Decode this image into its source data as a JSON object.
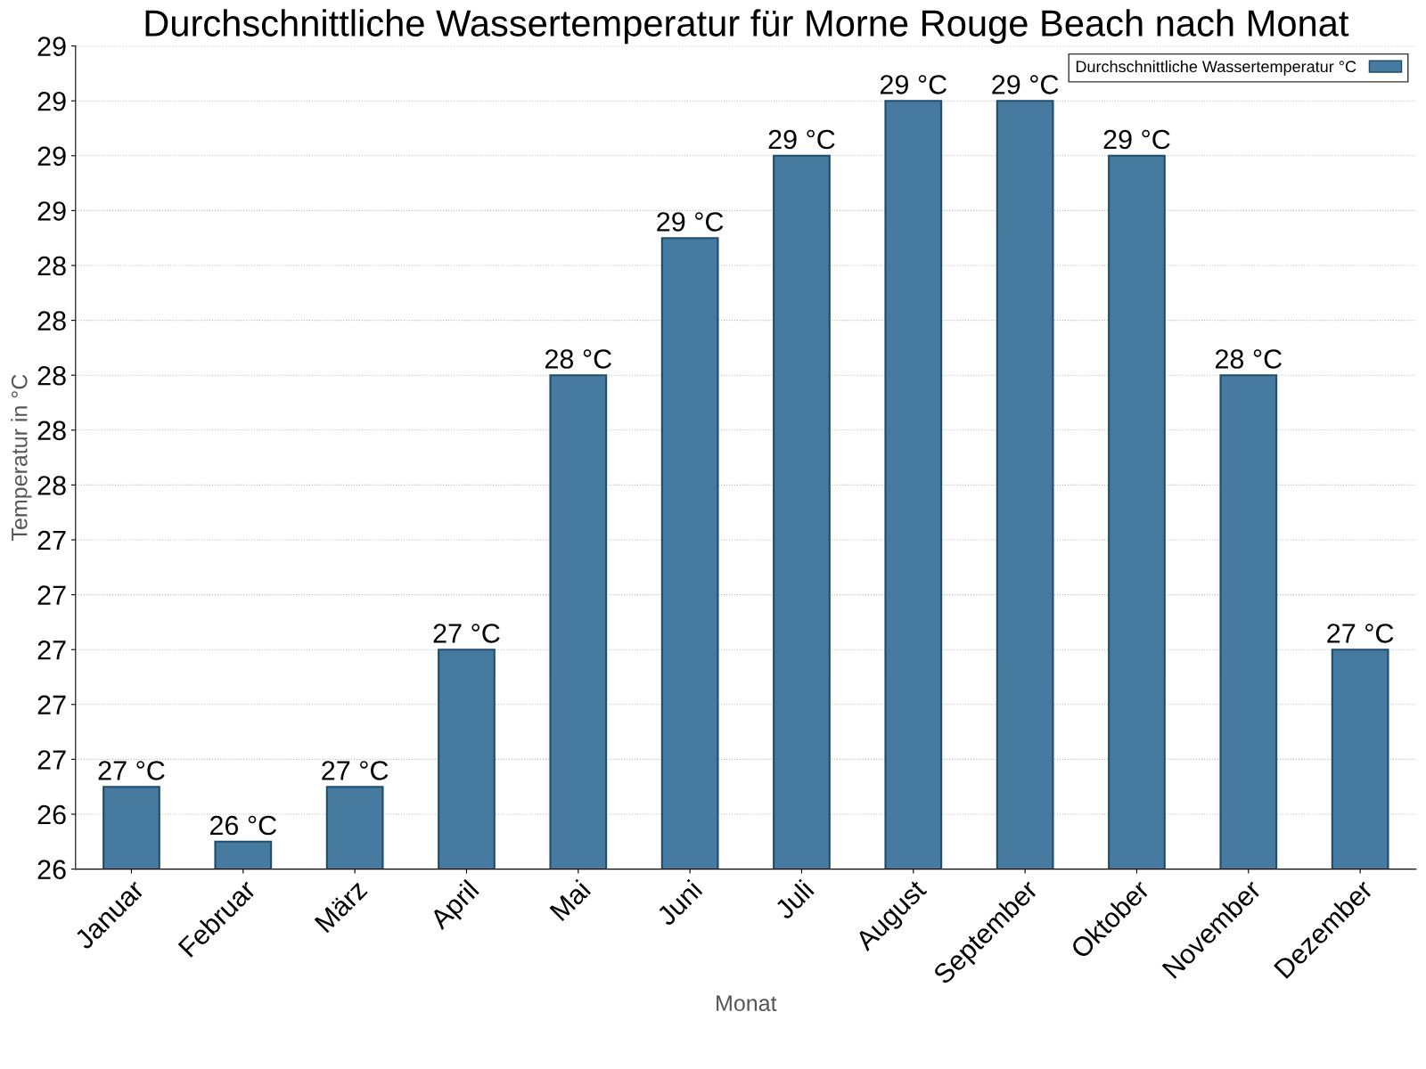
{
  "chart_data": {
    "type": "bar",
    "title": "Durchschnittliche Wassertemperatur für Morne Rouge Beach nach Monat",
    "xlabel": "Monat",
    "ylabel": "Temperatur in °C",
    "categories": [
      "Januar",
      "Februar",
      "März",
      "April",
      "Mai",
      "Juni",
      "Juli",
      "August",
      "September",
      "Oktober",
      "November",
      "Dezember"
    ],
    "series": [
      {
        "name": "Durchschnittliche Wassertemperatur °C",
        "color": "#467a9e",
        "values": [
          26.5,
          26.3,
          26.5,
          27.0,
          28.0,
          28.5,
          28.8,
          29.0,
          29.0,
          28.8,
          28.0,
          27.0
        ],
        "value_labels": [
          "27 °C",
          "26 °C",
          "27 °C",
          "27 °C",
          "28 °C",
          "29 °C",
          "29 °C",
          "29 °C",
          "29 °C",
          "29 °C",
          "28 °C",
          "27 °C"
        ]
      }
    ],
    "ylim": [
      26.2,
      29.2
    ],
    "yticks": [
      {
        "value": 26.2,
        "label": "26"
      },
      {
        "value": 26.4,
        "label": "26"
      },
      {
        "value": 26.6,
        "label": "27"
      },
      {
        "value": 26.8,
        "label": "27"
      },
      {
        "value": 27.0,
        "label": "27"
      },
      {
        "value": 27.2,
        "label": "27"
      },
      {
        "value": 27.4,
        "label": "27"
      },
      {
        "value": 27.6,
        "label": "28"
      },
      {
        "value": 27.8,
        "label": "28"
      },
      {
        "value": 28.0,
        "label": "28"
      },
      {
        "value": 28.2,
        "label": "28"
      },
      {
        "value": 28.4,
        "label": "28"
      },
      {
        "value": 28.6,
        "label": "29"
      },
      {
        "value": 28.8,
        "label": "29"
      },
      {
        "value": 29.0,
        "label": "29"
      },
      {
        "value": 29.2,
        "label": "29"
      }
    ],
    "grid": "y",
    "legend": "top right"
  }
}
